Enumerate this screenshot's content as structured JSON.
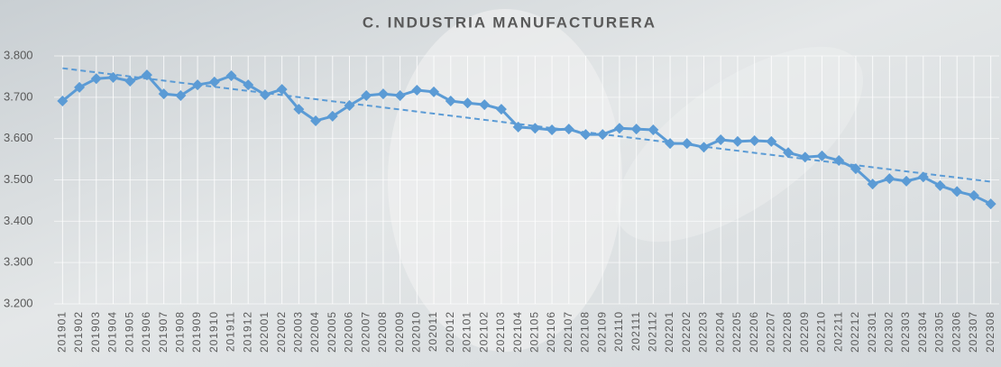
{
  "chart_data": {
    "type": "line",
    "title": "C. INDUSTRIA MANUFACTURERA",
    "categories": [
      "201901",
      "201902",
      "201903",
      "201904",
      "201905",
      "201906",
      "201907",
      "201908",
      "201909",
      "201910",
      "201911",
      "201912",
      "202001",
      "202002",
      "202003",
      "202004",
      "202005",
      "202006",
      "202007",
      "202008",
      "202009",
      "202010",
      "202011",
      "202012",
      "202101",
      "202102",
      "202103",
      "202104",
      "202105",
      "202106",
      "202107",
      "202108",
      "202109",
      "202110",
      "202111",
      "202112",
      "202201",
      "202202",
      "202203",
      "202204",
      "202205",
      "202206",
      "202207",
      "202208",
      "202209",
      "202210",
      "202211",
      "202212",
      "202301",
      "202302",
      "202303",
      "202304",
      "202305",
      "202306",
      "202307",
      "202308"
    ],
    "series": [
      {
        "color": "#5b9bd5",
        "values": [
          3691,
          3724,
          3745,
          3748,
          3739,
          3754,
          3708,
          3704,
          3730,
          3737,
          3752,
          3730,
          3706,
          3719,
          3671,
          3643,
          3654,
          3680,
          3704,
          3708,
          3704,
          3717,
          3713,
          3691,
          3686,
          3682,
          3671,
          3628,
          3625,
          3621,
          3623,
          3610,
          3610,
          3625,
          3623,
          3621,
          3588,
          3588,
          3579,
          3597,
          3593,
          3595,
          3593,
          3566,
          3555,
          3558,
          3547,
          3527,
          3490,
          3503,
          3497,
          3507,
          3486,
          3472,
          3462,
          3442
        ]
      }
    ],
    "ylim": [
      3200,
      3800
    ],
    "yticks": [
      {
        "value": 3200,
        "label": "3.200"
      },
      {
        "value": 3300,
        "label": "3.300"
      },
      {
        "value": 3400,
        "label": "3.400"
      },
      {
        "value": 3500,
        "label": "3.500"
      },
      {
        "value": 3600,
        "label": "3.600"
      },
      {
        "value": 3700,
        "label": "3.700"
      },
      {
        "value": 3800,
        "label": "3.800"
      }
    ],
    "grid": true,
    "trendline": "linear"
  }
}
